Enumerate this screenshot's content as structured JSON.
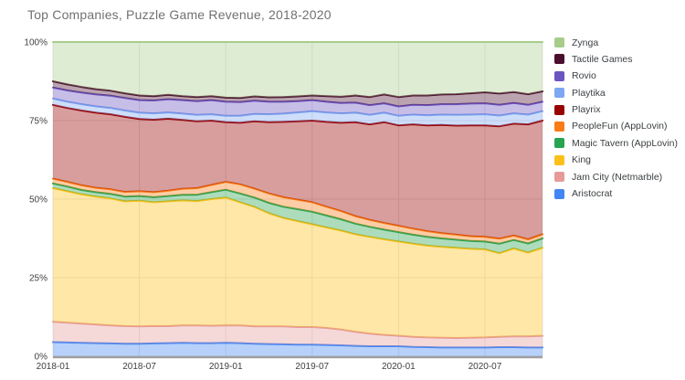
{
  "title": "Top Companies, Puzzle Game Revenue, 2018-2020",
  "colors": {
    "background": "#ffffff",
    "title_text": "#717171",
    "axis_text": "#404040",
    "legend_text": "#3c4043",
    "gridline": "#e6e6e6",
    "plot_border": "#e3e6e3",
    "baseline": "#9e9e9e"
  },
  "chart_data": {
    "type": "area",
    "stacked": "percent",
    "title": "Top Companies, Puzzle Game Revenue, 2018-2020",
    "xlabel": "",
    "ylabel": "",
    "ylim": [
      0,
      100
    ],
    "grid": true,
    "area_opacity": 0.38,
    "legend_position": "right",
    "legend_top_to_bottom": [
      "Zynga",
      "Tactile Games",
      "Rovio",
      "Playtika",
      "Playrix",
      "PeopleFun (AppLovin)",
      "Magic Tavern (AppLovin)",
      "King",
      "Jam City (Netmarble)",
      "Aristocrat"
    ],
    "yticks": [
      {
        "label": "100%",
        "value": 100
      },
      {
        "label": "75%",
        "value": 75
      },
      {
        "label": "50%",
        "value": 50
      },
      {
        "label": "25%",
        "value": 25
      },
      {
        "label": "0%",
        "value": 0
      }
    ],
    "xticks": [
      {
        "label": "2018-01",
        "month_index": 0
      },
      {
        "label": "2018-07",
        "month_index": 6
      },
      {
        "label": "2019-01",
        "month_index": 12
      },
      {
        "label": "2019-07",
        "month_index": 18
      },
      {
        "label": "2020-01",
        "month_index": 24
      },
      {
        "label": "2020-07",
        "month_index": 30
      }
    ],
    "x": [
      "2018-01",
      "2018-02",
      "2018-03",
      "2018-04",
      "2018-05",
      "2018-06",
      "2018-07",
      "2018-08",
      "2018-09",
      "2018-10",
      "2018-11",
      "2018-12",
      "2019-01",
      "2019-02",
      "2019-03",
      "2019-04",
      "2019-05",
      "2019-06",
      "2019-07",
      "2019-08",
      "2019-09",
      "2019-10",
      "2019-11",
      "2019-12",
      "2020-01",
      "2020-02",
      "2020-03",
      "2020-04",
      "2020-05",
      "2020-06",
      "2020-07",
      "2020-08",
      "2020-09",
      "2020-10",
      "2020-11"
    ],
    "series": [
      {
        "name": "Aristocrat",
        "color": "#4285f4",
        "values": [
          4.5,
          4.4,
          4.3,
          4.2,
          4.1,
          4.0,
          4.0,
          4.1,
          4.2,
          4.3,
          4.2,
          4.2,
          4.3,
          4.2,
          4.0,
          3.9,
          3.8,
          3.7,
          3.7,
          3.6,
          3.5,
          3.3,
          3.2,
          3.2,
          3.2,
          3.0,
          2.9,
          2.8,
          2.8,
          2.8,
          2.8,
          2.9,
          2.9,
          2.8,
          2.8
        ]
      },
      {
        "name": "Jam City (Netmarble)",
        "color": "#e69b9b",
        "values": [
          6.5,
          6.3,
          6.1,
          5.9,
          5.7,
          5.6,
          5.5,
          5.5,
          5.4,
          5.5,
          5.6,
          5.5,
          5.5,
          5.6,
          5.5,
          5.6,
          5.7,
          5.6,
          5.6,
          5.4,
          5.0,
          4.5,
          4.0,
          3.6,
          3.3,
          3.2,
          3.1,
          3.1,
          3.0,
          3.1,
          3.2,
          3.3,
          3.4,
          3.5,
          3.7
        ]
      },
      {
        "name": "King",
        "color": "#fcc018",
        "values": [
          42.5,
          41.8,
          41.1,
          40.7,
          40.4,
          39.7,
          40.0,
          39.4,
          39.7,
          39.8,
          39.6,
          40.3,
          40.7,
          39.2,
          38.0,
          36.0,
          34.5,
          33.7,
          32.7,
          32.0,
          31.5,
          31.0,
          30.8,
          30.4,
          30.0,
          29.6,
          29.2,
          28.9,
          28.7,
          28.3,
          28.0,
          26.6,
          28.0,
          26.7,
          28.0
        ]
      },
      {
        "name": "Magic Tavern (AppLovin)",
        "color": "#27a450",
        "values": [
          1.5,
          1.5,
          1.4,
          1.4,
          1.5,
          1.5,
          1.5,
          1.6,
          1.7,
          1.8,
          2.0,
          2.2,
          2.5,
          2.8,
          3.0,
          3.3,
          3.6,
          3.8,
          4.0,
          3.8,
          3.6,
          3.4,
          3.2,
          3.1,
          3.0,
          2.9,
          2.8,
          2.7,
          2.6,
          2.5,
          2.5,
          3.0,
          2.7,
          2.9,
          3.0
        ]
      },
      {
        "name": "PeopleFun (AppLovin)",
        "color": "#f97c16",
        "values": [
          1.5,
          1.5,
          1.5,
          1.4,
          1.4,
          1.5,
          1.5,
          1.6,
          1.7,
          1.9,
          2.1,
          2.3,
          2.5,
          2.9,
          2.8,
          3.0,
          3.0,
          3.0,
          3.0,
          2.8,
          2.6,
          2.4,
          2.2,
          2.1,
          2.0,
          1.9,
          1.8,
          1.7,
          1.6,
          1.5,
          1.5,
          1.6,
          1.4,
          1.3,
          1.3
        ]
      },
      {
        "name": "Playrix",
        "color": "#990000",
        "values": [
          23.5,
          23.5,
          23.8,
          23.9,
          23.9,
          23.9,
          23.0,
          23.1,
          22.9,
          21.9,
          21.3,
          20.5,
          19.0,
          19.6,
          21.5,
          22.7,
          24.0,
          25.0,
          26.0,
          27.0,
          28.1,
          29.9,
          30.4,
          32.1,
          32.0,
          33.2,
          33.7,
          34.4,
          34.7,
          35.3,
          35.5,
          35.8,
          35.6,
          36.6,
          36.2
        ]
      },
      {
        "name": "Playtika",
        "color": "#7da7f2",
        "values": [
          2.0,
          2.0,
          2.0,
          2.0,
          2.0,
          2.0,
          2.0,
          2.0,
          2.0,
          2.0,
          2.0,
          2.0,
          2.0,
          2.2,
          2.3,
          2.5,
          2.6,
          2.8,
          3.0,
          3.0,
          3.0,
          3.0,
          3.0,
          3.0,
          3.0,
          3.1,
          3.2,
          3.3,
          3.4,
          3.4,
          3.5,
          3.4,
          3.3,
          3.1,
          3.0
        ]
      },
      {
        "name": "Rovio",
        "color": "#6c55c0",
        "values": [
          3.5,
          3.6,
          3.7,
          3.8,
          3.9,
          4.0,
          4.0,
          4.1,
          4.2,
          4.3,
          4.4,
          4.5,
          4.5,
          4.4,
          4.2,
          4.0,
          3.8,
          3.6,
          3.5,
          3.4,
          3.3,
          3.2,
          3.1,
          3.0,
          3.0,
          3.1,
          3.2,
          3.3,
          3.4,
          3.5,
          3.5,
          3.4,
          3.3,
          3.1,
          3.0
        ]
      },
      {
        "name": "Tactile Games",
        "color": "#4b0f2e",
        "values": [
          2.0,
          1.9,
          1.8,
          1.7,
          1.6,
          1.5,
          1.5,
          1.4,
          1.4,
          1.3,
          1.3,
          1.3,
          1.3,
          1.3,
          1.4,
          1.4,
          1.5,
          1.5,
          1.5,
          1.8,
          2.0,
          2.3,
          2.6,
          2.8,
          3.0,
          3.0,
          3.1,
          3.1,
          3.2,
          3.3,
          3.5,
          3.6,
          3.5,
          3.4,
          3.3
        ]
      },
      {
        "name": "Zynga",
        "color": "#a8cd8b",
        "values": [
          12.5,
          13.5,
          14.3,
          15.0,
          15.5,
          16.3,
          17.0,
          17.2,
          16.8,
          17.2,
          17.5,
          17.2,
          17.7,
          17.8,
          17.3,
          17.6,
          17.5,
          17.3,
          17.0,
          17.2,
          17.4,
          17.0,
          17.5,
          16.7,
          17.5,
          17.0,
          17.0,
          16.7,
          16.6,
          16.3,
          16.0,
          16.4,
          15.9,
          16.6,
          15.7
        ]
      }
    ]
  }
}
